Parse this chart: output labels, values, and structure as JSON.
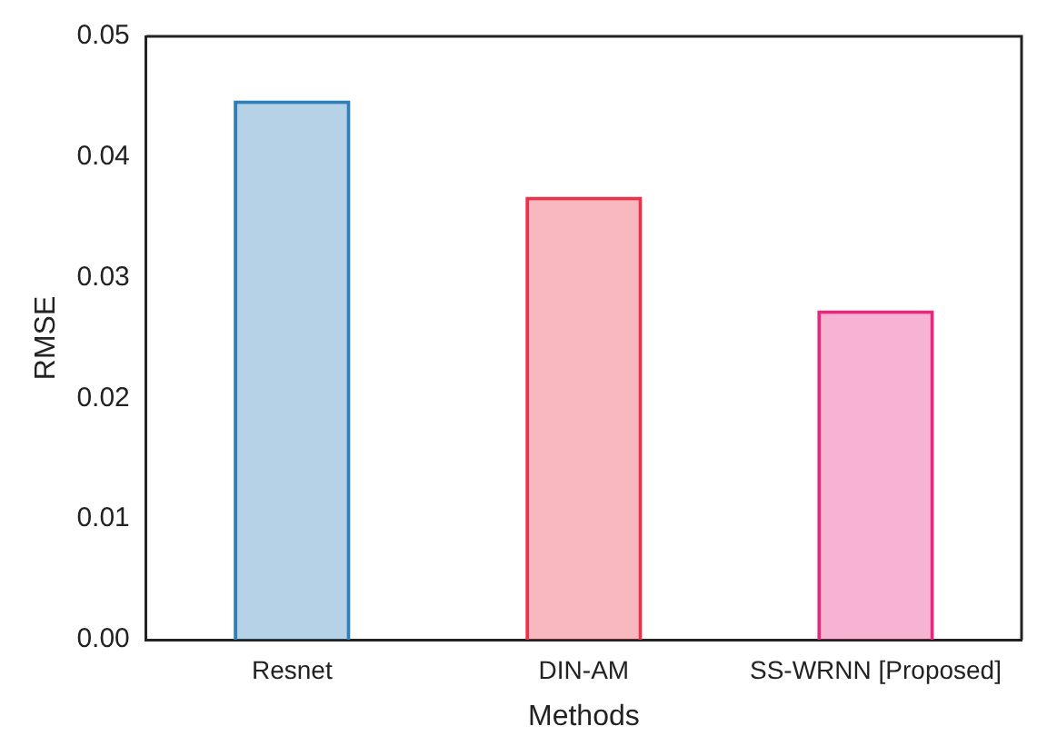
{
  "chart_data": {
    "type": "bar",
    "xlabel": "Methods",
    "ylabel": "RMSE",
    "categories": [
      "Resnet",
      "DIN-AM",
      "SS-WRNN [Proposed]"
    ],
    "values": [
      0.0447,
      0.0367,
      0.0273
    ],
    "colors": [
      "#2f7fb8",
      "#e8344a",
      "#e8287e"
    ],
    "ylim": [
      0,
      0.05
    ],
    "yticks": [
      {
        "value": 0,
        "label": "0.00"
      },
      {
        "value": 0.01,
        "label": "0.01"
      },
      {
        "value": 0.02,
        "label": "0.02"
      },
      {
        "value": 0.03,
        "label": "0.03"
      },
      {
        "value": 0.04,
        "label": "0.04"
      },
      {
        "value": 0.05,
        "label": "0.05"
      }
    ],
    "grid": false,
    "legend": false
  }
}
